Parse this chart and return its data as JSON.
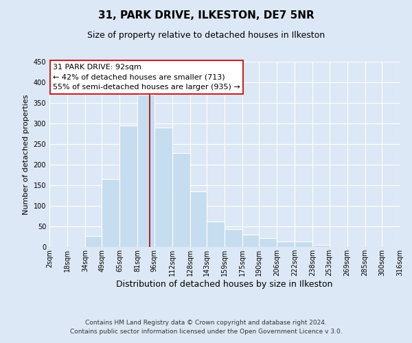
{
  "title1": "31, PARK DRIVE, ILKESTON, DE7 5NR",
  "title2": "Size of property relative to detached houses in Ilkeston",
  "xlabel": "Distribution of detached houses by size in Ilkeston",
  "ylabel": "Number of detached properties",
  "bar_values": [
    0,
    0,
    27,
    165,
    295,
    370,
    290,
    228,
    135,
    62,
    43,
    30,
    22,
    13,
    13,
    5,
    0,
    0,
    0,
    0
  ],
  "bin_edges": [
    2,
    18,
    34,
    49,
    65,
    81,
    96,
    112,
    128,
    143,
    159,
    175,
    190,
    206,
    222,
    238,
    253,
    269,
    285,
    300,
    316
  ],
  "xtick_labels": [
    "2sqm",
    "18sqm",
    "34sqm",
    "49sqm",
    "65sqm",
    "81sqm",
    "96sqm",
    "112sqm",
    "128sqm",
    "143sqm",
    "159sqm",
    "175sqm",
    "190sqm",
    "206sqm",
    "222sqm",
    "238sqm",
    "253sqm",
    "269sqm",
    "285sqm",
    "300sqm",
    "316sqm"
  ],
  "bar_color": "#c5ddef",
  "bar_edge_color": "#ffffff",
  "bar_edge_linewidth": 0.8,
  "red_line_x": 92,
  "red_line_color": "#aa0000",
  "ylim": [
    0,
    450
  ],
  "yticks": [
    0,
    50,
    100,
    150,
    200,
    250,
    300,
    350,
    400,
    450
  ],
  "annotation_title": "31 PARK DRIVE: 92sqm",
  "annotation_line1": "← 42% of detached houses are smaller (713)",
  "annotation_line2": "55% of semi-detached houses are larger (935) →",
  "annotation_box_color": "#ffffff",
  "annotation_box_edgecolor": "#cc2222",
  "background_color": "#dce8f5",
  "plot_bg_color": "#dce8f5",
  "footer1": "Contains HM Land Registry data © Crown copyright and database right 2024.",
  "footer2": "Contains public sector information licensed under the Open Government Licence v 3.0.",
  "title1_fontsize": 11,
  "title2_fontsize": 9,
  "xlabel_fontsize": 9,
  "ylabel_fontsize": 8,
  "annotation_title_fontsize": 8.5,
  "annotation_line_fontsize": 8,
  "footer_fontsize": 6.5,
  "tick_fontsize": 7
}
